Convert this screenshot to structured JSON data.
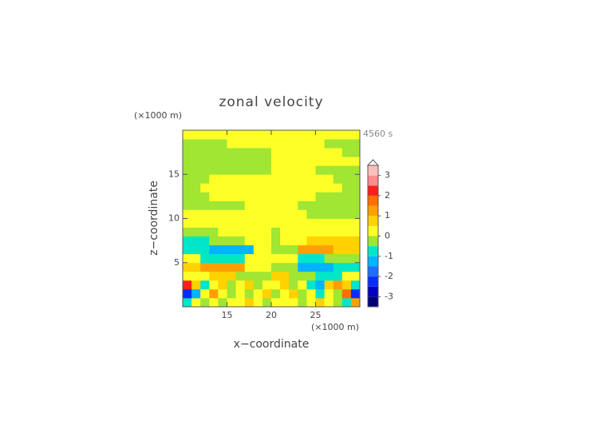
{
  "chart_data": {
    "type": "contour",
    "title": "zonal velocity",
    "xlabel": "x−coordinate",
    "ylabel": "z−coordinate",
    "x_unit": "(×1000 m)",
    "y_unit": "(×1000 m)",
    "annotation": "4560 s",
    "xlim": [
      10,
      30
    ],
    "ylim": [
      0,
      20
    ],
    "xticks": [
      15,
      20,
      25
    ],
    "yticks": [
      5,
      10,
      15
    ],
    "x": [
      10.5,
      11.5,
      12.5,
      13.5,
      14.5,
      15.5,
      16.5,
      17.5,
      18.5,
      19.5,
      20.5,
      21.5,
      22.5,
      23.5,
      24.5,
      25.5,
      26.5,
      27.5,
      28.5,
      29.5
    ],
    "y": [
      0.5,
      1.5,
      2.5,
      3.5,
      4.5,
      5.5,
      6.5,
      7.5,
      8.5,
      9.5,
      10.5,
      11.5,
      12.5,
      13.5,
      14.5,
      15.5,
      16.5,
      17.5,
      18.5,
      19.5
    ],
    "z": [
      [
        -0.75,
        0.25,
        -0.25,
        0.25,
        -0.25,
        0.25,
        0.25,
        0.75,
        0.25,
        -0.25,
        0.25,
        0.25,
        0.25,
        -0.25,
        0.25,
        0.75,
        0.25,
        -0.25,
        -0.75,
        1.25
      ],
      [
        -2.25,
        -1.25,
        0.25,
        1.25,
        0.25,
        -0.25,
        0.25,
        -0.25,
        0.25,
        0.75,
        -0.25,
        0.25,
        0.75,
        -0.25,
        0.25,
        -0.75,
        0.25,
        -0.25,
        1.75,
        -2.25
      ],
      [
        2.25,
        0.75,
        -0.75,
        0.25,
        0.75,
        -0.25,
        0.25,
        0.75,
        -0.25,
        0.25,
        0.25,
        0.75,
        -0.25,
        0.25,
        -0.75,
        -1.25,
        0.75,
        1.25,
        0.75,
        -0.75
      ],
      [
        0.25,
        0.25,
        0.25,
        0.75,
        0.75,
        0.75,
        -0.25,
        -0.25,
        -0.25,
        -0.25,
        0.75,
        0.75,
        -0.25,
        -0.25,
        -0.25,
        -0.75,
        -0.75,
        -0.75,
        0.25,
        0.25
      ],
      [
        0.75,
        0.75,
        1.25,
        1.25,
        1.25,
        1.25,
        1.25,
        0.25,
        0.25,
        0.25,
        -0.25,
        -0.25,
        -0.25,
        -1.25,
        -1.25,
        -1.25,
        -1.25,
        -0.75,
        -0.75,
        -0.75
      ],
      [
        0.25,
        0.25,
        -0.75,
        -0.75,
        -0.75,
        -0.75,
        -0.75,
        0.25,
        0.25,
        0.25,
        0.25,
        0.25,
        0.25,
        -0.75,
        -0.75,
        -0.75,
        -0.25,
        -0.25,
        -0.25,
        -0.25
      ],
      [
        -0.75,
        -0.75,
        -0.75,
        -1.25,
        -1.25,
        -1.25,
        -1.25,
        -1.25,
        0.25,
        0.25,
        -0.25,
        -0.25,
        -0.25,
        1.25,
        1.25,
        1.25,
        1.25,
        0.75,
        0.75,
        0.75
      ],
      [
        -0.75,
        -0.75,
        -0.75,
        -0.25,
        -0.25,
        -0.25,
        -0.25,
        0.25,
        0.25,
        0.25,
        -0.25,
        0.25,
        0.25,
        0.25,
        0.75,
        0.75,
        0.75,
        0.75,
        0.75,
        0.75
      ],
      [
        -0.25,
        -0.25,
        -0.25,
        -0.25,
        0.25,
        0.25,
        0.25,
        0.25,
        0.25,
        0.25,
        -0.25,
        0.25,
        0.25,
        0.25,
        0.25,
        0.25,
        0.25,
        0.25,
        0.25,
        0.25
      ],
      [
        0.25,
        0.25,
        0.25,
        0.25,
        0.25,
        0.25,
        0.25,
        0.25,
        0.25,
        0.25,
        0.25,
        0.25,
        0.25,
        0.25,
        0.25,
        0.25,
        0.25,
        0.25,
        0.25,
        0.25
      ],
      [
        0.25,
        0.25,
        0.25,
        0.25,
        0.25,
        0.25,
        0.25,
        0.25,
        0.25,
        0.25,
        0.25,
        0.25,
        0.25,
        0.25,
        -0.25,
        -0.25,
        -0.25,
        -0.25,
        -0.25,
        -0.25
      ],
      [
        -0.25,
        -0.25,
        -0.25,
        -0.25,
        -0.25,
        -0.25,
        -0.25,
        0.25,
        0.25,
        0.25,
        0.25,
        0.25,
        0.25,
        -0.25,
        -0.25,
        -0.25,
        -0.25,
        -0.25,
        -0.25,
        -0.25
      ],
      [
        -0.25,
        -0.25,
        -0.25,
        0.25,
        0.25,
        0.25,
        0.25,
        0.25,
        0.25,
        0.25,
        0.25,
        0.25,
        0.25,
        0.25,
        0.25,
        -0.25,
        -0.25,
        -0.25,
        -0.25,
        -0.25
      ],
      [
        -0.25,
        -0.25,
        0.25,
        0.25,
        0.25,
        0.25,
        0.25,
        0.25,
        0.25,
        0.25,
        0.25,
        0.25,
        0.25,
        0.25,
        0.25,
        0.25,
        0.25,
        0.25,
        -0.25,
        -0.25
      ],
      [
        -0.25,
        -0.25,
        -0.25,
        0.25,
        0.25,
        0.25,
        0.25,
        0.25,
        0.25,
        0.25,
        0.25,
        0.25,
        0.25,
        0.25,
        0.25,
        0.25,
        0.25,
        -0.25,
        -0.25,
        -0.25
      ],
      [
        -0.25,
        -0.25,
        -0.25,
        -0.25,
        -0.25,
        -0.25,
        -0.25,
        -0.25,
        -0.25,
        -0.25,
        0.25,
        0.25,
        0.25,
        0.25,
        0.25,
        -0.25,
        -0.25,
        -0.25,
        -0.25,
        -0.25
      ],
      [
        -0.25,
        -0.25,
        -0.25,
        -0.25,
        -0.25,
        -0.25,
        -0.25,
        -0.25,
        -0.25,
        -0.25,
        0.25,
        0.25,
        0.25,
        0.25,
        0.25,
        0.25,
        0.25,
        0.25,
        0.25,
        0.25
      ],
      [
        -0.25,
        -0.25,
        -0.25,
        -0.25,
        -0.25,
        -0.25,
        -0.25,
        -0.25,
        -0.25,
        -0.25,
        0.25,
        0.25,
        0.25,
        0.25,
        0.25,
        0.25,
        0.25,
        0.25,
        -0.25,
        -0.25
      ],
      [
        -0.25,
        -0.25,
        -0.25,
        -0.25,
        -0.25,
        0.25,
        0.25,
        0.25,
        0.25,
        0.25,
        0.25,
        0.25,
        0.25,
        0.25,
        0.25,
        0.25,
        -0.25,
        -0.25,
        -0.25,
        -0.25
      ],
      [
        0.25,
        0.25,
        0.25,
        0.25,
        0.25,
        0.25,
        0.25,
        0.25,
        0.25,
        0.25,
        0.25,
        0.25,
        0.25,
        0.25,
        0.25,
        0.25,
        0.25,
        0.25,
        0.25,
        0.25
      ]
    ],
    "colorbar": {
      "levels": [
        -3.5,
        -3,
        -2.5,
        -2,
        -1.5,
        -1,
        -0.5,
        0,
        0.5,
        1,
        1.5,
        2,
        2.5,
        3,
        3.5
      ],
      "colors": [
        "#00007a",
        "#0000c0",
        "#0a2dff",
        "#1e6eff",
        "#00b4ff",
        "#00e6c8",
        "#a0e632",
        "#ffff28",
        "#ffd200",
        "#ffa000",
        "#ff6e00",
        "#ff1e1e",
        "#ff8c8c",
        "#ffbebe"
      ],
      "extend_color": "#ffffff",
      "ticks": [
        -3,
        -2,
        -1,
        0,
        1,
        2,
        3
      ]
    }
  }
}
